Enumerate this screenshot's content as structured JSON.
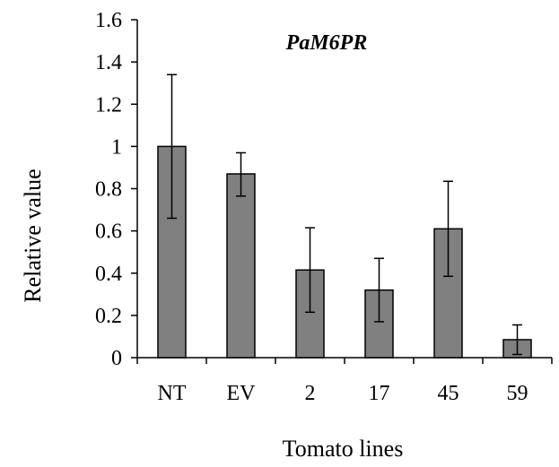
{
  "chart_data": {
    "type": "bar",
    "title": "PaM6PR",
    "xlabel": "Tomato lines",
    "ylabel": "Relative value",
    "categories": [
      "NT",
      "EV",
      "2",
      "17",
      "45",
      "59"
    ],
    "values": [
      1.0,
      0.87,
      0.415,
      0.32,
      0.61,
      0.085
    ],
    "error_low": [
      0.66,
      0.765,
      0.215,
      0.17,
      0.385,
      0.015
    ],
    "error_high": [
      1.34,
      0.97,
      0.615,
      0.47,
      0.835,
      0.155
    ],
    "ylim": [
      0,
      1.6
    ],
    "yticks": [
      0,
      0.2,
      0.4,
      0.6,
      0.8,
      1.0,
      1.2,
      1.4,
      1.6
    ],
    "ytick_labels": [
      "0",
      "0.2",
      "0.4",
      "0.6",
      "0.8",
      "1",
      "1.2",
      "1.4",
      "1.6"
    ],
    "grid": false,
    "legend": "none",
    "bar_color": "#808080",
    "bar_edge_color": "#000000"
  }
}
